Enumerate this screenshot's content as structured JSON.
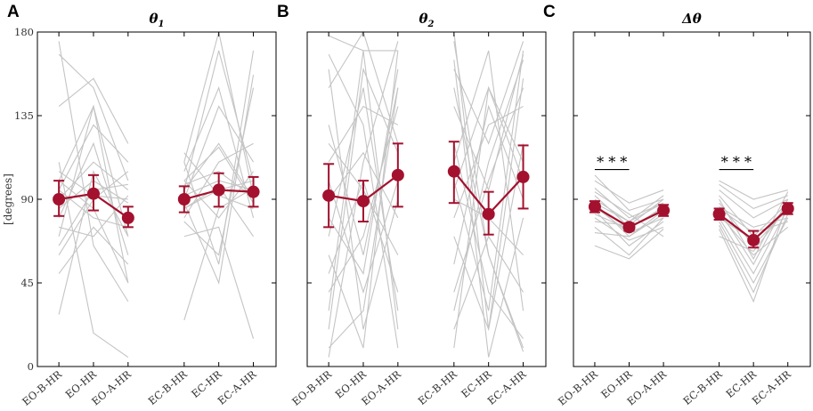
{
  "chart_data": {
    "type": "line",
    "ylabel": "[degrees]",
    "ylim": [
      0,
      180
    ],
    "yticks": [
      0,
      45,
      90,
      135,
      180
    ],
    "categories": [
      "EO-B-HR",
      "EO-HR",
      "EO-A-HR",
      "EC-B-HR",
      "EC-HR",
      "EC-A-HR"
    ],
    "colors": {
      "mean": "#a3112e",
      "subject": "#c4c4c4",
      "frame": "#000000"
    },
    "panels": [
      {
        "letter": "A",
        "title_main": "θ",
        "title_sub": "1",
        "ylim": [
          0,
          180
        ],
        "yticks": [
          0,
          45,
          90,
          135,
          180
        ],
        "mean_series": [
          {
            "name": "EO",
            "categories": [
              "EO-B-HR",
              "EO-HR",
              "EO-A-HR"
            ],
            "mean": [
              90,
              93,
              80
            ],
            "lower": [
              81,
              84,
              75
            ],
            "upper": [
              100,
              103,
              86
            ]
          },
          {
            "name": "EC",
            "categories": [
              "EC-B-HR",
              "EC-HR",
              "EC-A-HR"
            ],
            "mean": [
              90,
              95,
              94
            ],
            "lower": [
              83,
              86,
              86
            ],
            "upper": [
              97,
              104,
              102
            ]
          }
        ],
        "subjects": [
          [
            175,
            65,
            35,
            110,
            55,
            170
          ],
          [
            168,
            150,
            100,
            95,
            120,
            90
          ],
          [
            140,
            155,
            120,
            85,
            95,
            100
          ],
          [
            100,
            140,
            45,
            110,
            180,
            92
          ],
          [
            95,
            130,
            110,
            78,
            60,
            150
          ],
          [
            90,
            110,
            95,
            100,
            80,
            105
          ],
          [
            85,
            100,
            88,
            92,
            100,
            95
          ],
          [
            80,
            120,
            60,
            90,
            140,
            110
          ],
          [
            75,
            70,
            92,
            105,
            150,
            80
          ],
          [
            70,
            140,
            70,
            80,
            110,
            120
          ],
          [
            60,
            90,
            105,
            115,
            92,
            85
          ],
          [
            50,
            75,
            55,
            95,
            170,
            100
          ],
          [
            28,
            105,
            70,
            25,
            85,
            96
          ],
          [
            110,
            18,
            5,
            88,
            45,
            157
          ],
          [
            100,
            85,
            45,
            70,
            75,
            15
          ],
          [
            65,
            95,
            98,
            100,
            118,
            88
          ],
          [
            105,
            92,
            90,
            85,
            97,
            70
          ],
          [
            95,
            80,
            75,
            98,
            105,
            91
          ]
        ],
        "significance": []
      },
      {
        "letter": "B",
        "title_main": "θ",
        "title_sub": "2",
        "ylim": [
          0,
          180
        ],
        "yticks": [
          0,
          45,
          90,
          135,
          180
        ],
        "mean_series": [
          {
            "name": "EO",
            "categories": [
              "EO-B-HR",
              "EO-HR",
              "EO-A-HR"
            ],
            "mean": [
              92,
              89,
              103
            ],
            "lower": [
              75,
              78,
              86
            ],
            "upper": [
              109,
              100,
              120
            ]
          },
          {
            "name": "EC",
            "categories": [
              "EC-B-HR",
              "EC-HR",
              "EC-A-HR"
            ],
            "mean": [
              105,
              82,
              102
            ],
            "lower": [
              88,
              71,
              85
            ],
            "upper": [
              121,
              94,
              119
            ]
          }
        ],
        "subjects": [
          [
            5,
            110,
            175,
            180,
            20,
            155
          ],
          [
            178,
            170,
            170,
            175,
            60,
            8
          ],
          [
            168,
            130,
            10,
            160,
            120,
            175
          ],
          [
            160,
            20,
            90,
            140,
            95,
            168
          ],
          [
            150,
            180,
            120,
            120,
            40,
            15
          ],
          [
            130,
            60,
            150,
            110,
            170,
            30
          ],
          [
            120,
            95,
            60,
            95,
            150,
            100
          ],
          [
            110,
            140,
            130,
            90,
            80,
            60
          ],
          [
            100,
            40,
            100,
            80,
            130,
            140
          ],
          [
            90,
            115,
            80,
            70,
            20,
            120
          ],
          [
            80,
            50,
            160,
            55,
            140,
            90
          ],
          [
            70,
            150,
            30,
            40,
            100,
            150
          ],
          [
            60,
            10,
            170,
            30,
            110,
            165
          ],
          [
            50,
            100,
            40,
            20,
            70,
            40
          ],
          [
            40,
            70,
            140,
            10,
            150,
            110
          ],
          [
            30,
            170,
            20,
            165,
            5,
            80
          ],
          [
            20,
            160,
            115,
            150,
            60,
            10
          ],
          [
            10,
            30,
            150,
            100,
            30,
            170
          ]
        ],
        "significance": []
      },
      {
        "letter": "C",
        "title_main": "Δθ",
        "title_sub": "",
        "ylim": [
          0,
          180
        ],
        "yticks": [
          0,
          45,
          90,
          135,
          180
        ],
        "mean_series": [
          {
            "name": "EO",
            "categories": [
              "EO-B-HR",
              "EO-HR",
              "EO-A-HR"
            ],
            "mean": [
              86,
              75,
              84
            ],
            "lower": [
              83,
              73,
              81
            ],
            "upper": [
              89,
              77,
              87
            ]
          },
          {
            "name": "EC",
            "categories": [
              "EC-B-HR",
              "EC-HR",
              "EC-A-HR"
            ],
            "mean": [
              82,
              68,
              85
            ],
            "lower": [
              79,
              64,
              82
            ],
            "upper": [
              85,
              73,
              88
            ]
          }
        ],
        "subjects": [
          [
            103,
            84,
            90,
            100,
            90,
            95
          ],
          [
            100,
            88,
            95,
            98,
            85,
            92
          ],
          [
            96,
            80,
            88,
            95,
            80,
            90
          ],
          [
            92,
            75,
            85,
            92,
            70,
            88
          ],
          [
            90,
            78,
            92,
            88,
            65,
            85
          ],
          [
            88,
            70,
            82,
            86,
            75,
            80
          ],
          [
            86,
            72,
            80,
            84,
            55,
            90
          ],
          [
            84,
            65,
            78,
            82,
            60,
            75
          ],
          [
            82,
            74,
            86,
            80,
            50,
            85
          ],
          [
            80,
            68,
            75,
            78,
            45,
            80
          ],
          [
            78,
            76,
            90,
            76,
            40,
            82
          ],
          [
            75,
            60,
            80,
            74,
            35,
            88
          ],
          [
            72,
            70,
            84,
            70,
            62,
            86
          ],
          [
            65,
            58,
            74,
            85,
            72,
            78
          ],
          [
            94,
            82,
            70,
            90,
            58,
            94
          ],
          [
            88,
            78,
            88,
            80,
            68,
            84
          ]
        ],
        "significance": [
          {
            "from": "EO-B-HR",
            "to": "EO-HR",
            "label": "* * *",
            "y": 106
          },
          {
            "from": "EC-B-HR",
            "to": "EC-HR",
            "label": "* * *",
            "y": 106
          }
        ]
      }
    ]
  }
}
